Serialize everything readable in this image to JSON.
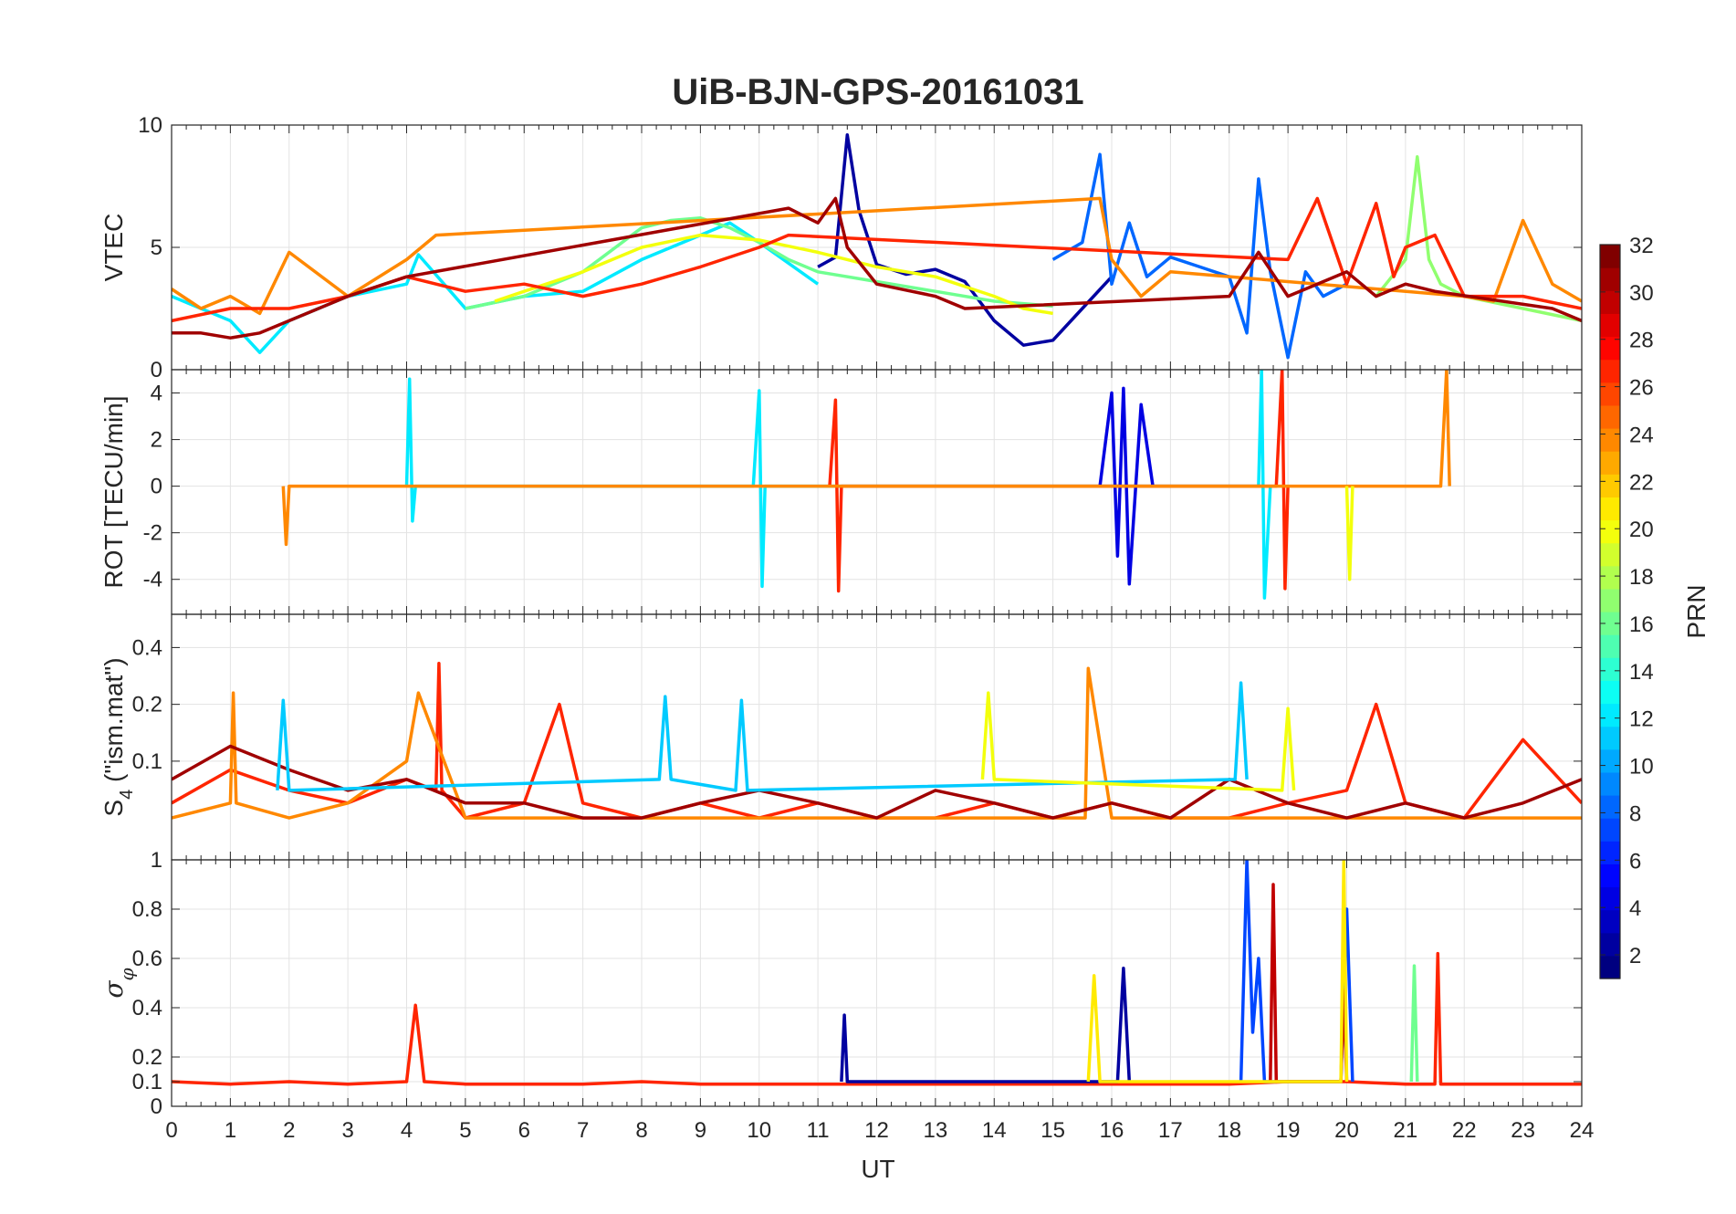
{
  "figure": {
    "title": "UiB-BJN-GPS-20161031",
    "xlabel": "UT",
    "colorbar": {
      "label": "PRN",
      "ticks": [
        "2",
        "4",
        "6",
        "8",
        "10",
        "12",
        "14",
        "16",
        "18",
        "20",
        "22",
        "24",
        "26",
        "28",
        "30",
        "32"
      ],
      "range": [
        1,
        32
      ],
      "colormap": "jet",
      "levels": 32
    }
  },
  "chart_data": [
    {
      "type": "line",
      "panel": "VTEC",
      "ylabel": "VTEC",
      "xlim": [
        0,
        24
      ],
      "ylim": [
        0,
        10
      ],
      "x_ticks": [
        0,
        1,
        2,
        3,
        4,
        5,
        6,
        7,
        8,
        9,
        10,
        11,
        12,
        13,
        14,
        15,
        16,
        17,
        18,
        19,
        20,
        21,
        22,
        23,
        24
      ],
      "y_ticks": [
        0,
        5,
        10
      ],
      "y_tick_labels": [
        "0",
        "5",
        "10"
      ],
      "grid": true,
      "series_note": "one trace per GPS satellite, color = PRN",
      "series": [
        {
          "prn": 2,
          "x": [
            11.0,
            11.3,
            11.5,
            11.7,
            12.0,
            12.5,
            13.0,
            13.5,
            14.0,
            14.5,
            15.0,
            15.5,
            16.0
          ],
          "y": [
            4.2,
            4.6,
            9.6,
            6.5,
            4.3,
            3.9,
            4.1,
            3.6,
            2.0,
            1.0,
            1.2,
            2.5,
            3.8
          ]
        },
        {
          "prn": 8,
          "x": [
            15.0,
            15.5,
            15.8,
            16.0,
            16.3,
            16.6,
            17.0,
            17.5,
            18.0,
            18.3,
            18.5,
            18.7,
            19.0,
            19.3,
            19.6,
            20.0
          ],
          "y": [
            4.5,
            5.2,
            8.8,
            3.5,
            6.0,
            3.8,
            4.6,
            4.2,
            3.8,
            1.5,
            7.8,
            4.0,
            0.5,
            4.0,
            3.0,
            3.5
          ]
        },
        {
          "prn": 12,
          "x": [
            0.0,
            0.5,
            1.0,
            1.5,
            2.0,
            3.0,
            4.0,
            4.2,
            5.0,
            6.0,
            7.0,
            8.0,
            9.0,
            9.5,
            10.0,
            11.0
          ],
          "y": [
            3.0,
            2.5,
            2.0,
            0.7,
            2.0,
            3.0,
            3.5,
            4.7,
            2.5,
            3.0,
            3.2,
            4.5,
            5.5,
            6.0,
            5.2,
            3.5
          ]
        },
        {
          "prn": 16,
          "x": [
            5.0,
            6.0,
            7.0,
            8.0,
            8.5,
            9.0,
            9.5,
            10.0,
            10.5,
            11.0,
            12.0,
            13.0,
            14.0,
            15.0
          ],
          "y": [
            2.5,
            3.0,
            4.0,
            5.8,
            6.1,
            6.2,
            5.8,
            5.2,
            4.5,
            4.0,
            3.6,
            3.2,
            2.8,
            2.6
          ]
        },
        {
          "prn": 17,
          "x": [
            20.5,
            21.0,
            21.2,
            21.4,
            21.6,
            22.0,
            23.0,
            24.0
          ],
          "y": [
            3.0,
            4.5,
            8.7,
            4.5,
            3.5,
            3.0,
            2.5,
            2.0
          ]
        },
        {
          "prn": 20,
          "x": [
            5.5,
            6.0,
            7.0,
            7.5,
            8.0,
            9.0,
            10.0,
            11.0,
            12.0,
            13.0,
            14.0,
            14.5,
            15.0
          ],
          "y": [
            2.8,
            3.2,
            4.0,
            4.5,
            5.0,
            5.5,
            5.3,
            4.8,
            4.2,
            3.8,
            3.0,
            2.5,
            2.3
          ]
        },
        {
          "prn": 24,
          "x": [
            0.0,
            0.5,
            1.0,
            1.5,
            2.0,
            3.0,
            4.0,
            4.5,
            15.8,
            16.0,
            16.5,
            17.0,
            22.0,
            22.5,
            23.0,
            23.5,
            24.0
          ],
          "y": [
            3.3,
            2.5,
            3.0,
            2.3,
            4.8,
            3.0,
            4.5,
            5.5,
            7.0,
            4.5,
            3.0,
            4.0,
            3.0,
            2.8,
            6.1,
            3.5,
            2.8
          ]
        },
        {
          "prn": 27,
          "x": [
            0.0,
            1.0,
            2.0,
            3.0,
            4.0,
            5.0,
            6.0,
            7.0,
            8.0,
            9.0,
            10.0,
            10.5,
            19.0,
            19.5,
            20.0,
            20.5,
            20.8,
            21.0,
            21.5,
            22.0,
            23.0,
            24.0
          ],
          "y": [
            2.0,
            2.5,
            2.5,
            3.0,
            3.8,
            3.2,
            3.5,
            3.0,
            3.5,
            4.2,
            5.0,
            5.5,
            4.5,
            7.0,
            3.5,
            6.8,
            3.8,
            5.0,
            5.5,
            3.0,
            3.0,
            2.5
          ]
        },
        {
          "prn": 31,
          "x": [
            0.0,
            0.5,
            1.0,
            1.5,
            2.0,
            3.0,
            4.0,
            10.5,
            11.0,
            11.3,
            11.5,
            12.0,
            13.0,
            13.5,
            18.0,
            18.5,
            19.0,
            19.5,
            20.0,
            20.5,
            21.0,
            21.5,
            23.5,
            24.0
          ],
          "y": [
            1.5,
            1.5,
            1.3,
            1.5,
            2.0,
            3.0,
            3.8,
            6.6,
            6.0,
            7.0,
            5.0,
            3.5,
            3.0,
            2.5,
            3.0,
            4.8,
            3.0,
            3.5,
            4.0,
            3.0,
            3.5,
            3.2,
            2.5,
            2.0
          ]
        }
      ]
    },
    {
      "type": "line",
      "panel": "ROT",
      "ylabel": "ROT [TECU/min]",
      "xlim": [
        0,
        24
      ],
      "ylim": [
        -5.5,
        5
      ],
      "x_ticks": [
        0,
        1,
        2,
        3,
        4,
        5,
        6,
        7,
        8,
        9,
        10,
        11,
        12,
        13,
        14,
        15,
        16,
        17,
        18,
        19,
        20,
        21,
        22,
        23,
        24
      ],
      "y_ticks": [
        -4,
        -2,
        0,
        2,
        4
      ],
      "y_tick_labels": [
        "-4",
        "-2",
        "0",
        "2",
        "4"
      ],
      "grid": true,
      "series_note": "one trace per GPS satellite, color = PRN",
      "series": [
        {
          "prn": 12,
          "x": [
            4.0,
            4.05,
            4.1,
            4.15,
            9.9,
            10.0,
            10.05,
            10.1,
            18.5,
            18.55,
            18.6,
            18.7
          ],
          "y": [
            0.0,
            4.6,
            -1.5,
            0.0,
            0.0,
            4.1,
            -4.3,
            0.0,
            0.0,
            5.0,
            -4.8,
            0.0
          ]
        },
        {
          "prn": 27,
          "x": [
            11.2,
            11.3,
            11.35,
            11.4,
            18.8,
            18.9,
            18.95,
            19.0
          ],
          "y": [
            0.0,
            3.7,
            -4.5,
            0.0,
            0.0,
            5.0,
            -4.4,
            0.0
          ]
        },
        {
          "prn": 4,
          "x": [
            15.8,
            16.0,
            16.1,
            16.2,
            16.3,
            16.5,
            16.7
          ],
          "y": [
            0.0,
            4.0,
            -3.0,
            4.2,
            -4.2,
            3.5,
            0.0
          ]
        },
        {
          "prn": 24,
          "x": [
            1.9,
            1.95,
            2.0,
            21.6,
            21.7,
            21.75
          ],
          "y": [
            0.0,
            -2.5,
            0.0,
            0.0,
            5.0,
            0.0
          ]
        },
        {
          "prn": 20,
          "x": [
            20.0,
            20.05,
            20.1
          ],
          "y": [
            0.0,
            -4.0,
            0.0
          ]
        }
      ]
    },
    {
      "type": "line",
      "panel": "S4",
      "ylabel": "S4 (\"ism.mat\")",
      "xlim": [
        0,
        24
      ],
      "ylim": [
        0.03,
        0.6
      ],
      "y_scale": "log",
      "x_ticks": [
        0,
        1,
        2,
        3,
        4,
        5,
        6,
        7,
        8,
        9,
        10,
        11,
        12,
        13,
        14,
        15,
        16,
        17,
        18,
        19,
        20,
        21,
        22,
        23,
        24
      ],
      "y_ticks": [
        0.1,
        0.2,
        0.4
      ],
      "y_tick_labels": [
        "0.1",
        "0.2",
        "0.4"
      ],
      "grid": true,
      "series_note": "one trace per GPS satellite, color = PRN",
      "series": [
        {
          "prn": 27,
          "x": [
            0,
            1,
            2,
            3,
            4,
            4.5,
            4.55,
            4.6,
            5,
            6,
            6.6,
            7,
            8,
            9,
            10,
            11,
            12,
            13,
            14,
            15,
            16,
            17,
            18,
            19,
            20,
            20.5,
            21,
            22,
            23,
            24
          ],
          "y": [
            0.06,
            0.09,
            0.07,
            0.06,
            0.08,
            0.07,
            0.33,
            0.07,
            0.05,
            0.06,
            0.2,
            0.06,
            0.05,
            0.06,
            0.05,
            0.06,
            0.05,
            0.05,
            0.06,
            0.05,
            0.06,
            0.05,
            0.05,
            0.06,
            0.07,
            0.2,
            0.06,
            0.05,
            0.13,
            0.06
          ]
        },
        {
          "prn": 24,
          "x": [
            0,
            1,
            1.05,
            1.1,
            2,
            3,
            4,
            4.2,
            5,
            6,
            7,
            8,
            9,
            10,
            11,
            12,
            13,
            14,
            15,
            15.55,
            15.6,
            16,
            17,
            18,
            19,
            20,
            21,
            22,
            23,
            24
          ],
          "y": [
            0.05,
            0.06,
            0.23,
            0.06,
            0.05,
            0.06,
            0.1,
            0.23,
            0.05,
            0.05,
            0.05,
            0.05,
            0.05,
            0.05,
            0.05,
            0.05,
            0.05,
            0.05,
            0.05,
            0.05,
            0.31,
            0.05,
            0.05,
            0.05,
            0.05,
            0.05,
            0.05,
            0.05,
            0.05,
            0.05
          ]
        },
        {
          "prn": 31,
          "x": [
            0,
            1,
            2,
            3,
            4,
            5,
            6,
            7,
            8,
            9,
            10,
            11,
            12,
            13,
            14,
            15,
            16,
            17,
            18,
            19,
            20,
            21,
            22,
            23,
            24
          ],
          "y": [
            0.08,
            0.12,
            0.09,
            0.07,
            0.08,
            0.06,
            0.06,
            0.05,
            0.05,
            0.06,
            0.07,
            0.06,
            0.05,
            0.07,
            0.06,
            0.05,
            0.06,
            0.05,
            0.08,
            0.06,
            0.05,
            0.06,
            0.05,
            0.06,
            0.08
          ]
        },
        {
          "prn": 11,
          "x": [
            1.8,
            1.9,
            2.0,
            8.3,
            8.4,
            8.5,
            9.6,
            9.7,
            9.8,
            18.1,
            18.2,
            18.3
          ],
          "y": [
            0.07,
            0.21,
            0.07,
            0.08,
            0.22,
            0.08,
            0.07,
            0.21,
            0.07,
            0.08,
            0.26,
            0.08
          ]
        },
        {
          "prn": 20,
          "x": [
            13.8,
            13.9,
            14.0,
            18.9,
            19.0,
            19.1
          ],
          "y": [
            0.08,
            0.23,
            0.08,
            0.07,
            0.19,
            0.07
          ]
        }
      ]
    },
    {
      "type": "line",
      "panel": "sigma_phi",
      "ylabel": "σφ",
      "xlim": [
        0,
        24
      ],
      "ylim": [
        0,
        1
      ],
      "x_ticks": [
        0,
        1,
        2,
        3,
        4,
        5,
        6,
        7,
        8,
        9,
        10,
        11,
        12,
        13,
        14,
        15,
        16,
        17,
        18,
        19,
        20,
        21,
        22,
        23,
        24
      ],
      "x_tick_labels": [
        "0",
        "1",
        "2",
        "3",
        "4",
        "5",
        "6",
        "7",
        "8",
        "9",
        "10",
        "11",
        "12",
        "13",
        "14",
        "15",
        "16",
        "17",
        "18",
        "19",
        "20",
        "21",
        "22",
        "23",
        "24"
      ],
      "y_ticks": [
        0,
        0.1,
        0.2,
        0.4,
        0.6,
        0.8,
        1
      ],
      "y_tick_labels": [
        "0",
        "0.1",
        "0.2",
        "0.4",
        "0.6",
        "0.8",
        "1"
      ],
      "grid": true,
      "series_note": "one trace per GPS satellite, color = PRN",
      "series": [
        {
          "prn": 27,
          "x": [
            0,
            1,
            2,
            3,
            4.0,
            4.15,
            4.3,
            5,
            6,
            7,
            8,
            9,
            10,
            11,
            12,
            13,
            14,
            15,
            16,
            17,
            18,
            19,
            20,
            21,
            21.5,
            21.55,
            21.6,
            22,
            23,
            24
          ],
          "y": [
            0.1,
            0.09,
            0.1,
            0.09,
            0.1,
            0.41,
            0.1,
            0.09,
            0.09,
            0.09,
            0.1,
            0.09,
            0.09,
            0.09,
            0.09,
            0.09,
            0.09,
            0.09,
            0.09,
            0.09,
            0.09,
            0.1,
            0.1,
            0.09,
            0.09,
            0.62,
            0.09,
            0.09,
            0.09,
            0.09
          ]
        },
        {
          "prn": 7,
          "x": [
            18.2,
            18.3,
            18.4,
            18.5,
            18.6,
            19.9,
            20.0,
            20.1
          ],
          "y": [
            0.1,
            1.0,
            0.3,
            0.6,
            0.1,
            0.1,
            0.8,
            0.1
          ]
        },
        {
          "prn": 30,
          "x": [
            18.7,
            18.75,
            18.8,
            19.9,
            19.95,
            20.0
          ],
          "y": [
            0.1,
            0.9,
            0.1,
            0.1,
            0.47,
            0.1
          ]
        },
        {
          "prn": 2,
          "x": [
            11.4,
            11.45,
            11.5,
            16.1,
            16.2,
            16.3
          ],
          "y": [
            0.1,
            0.37,
            0.1,
            0.1,
            0.56,
            0.1
          ]
        },
        {
          "prn": 21,
          "x": [
            15.6,
            15.7,
            15.8,
            19.9,
            19.95,
            20.0
          ],
          "y": [
            0.1,
            0.53,
            0.1,
            0.1,
            1.0,
            0.1
          ]
        },
        {
          "prn": 16,
          "x": [
            21.1,
            21.15,
            21.2
          ],
          "y": [
            0.1,
            0.57,
            0.1
          ]
        }
      ]
    }
  ]
}
